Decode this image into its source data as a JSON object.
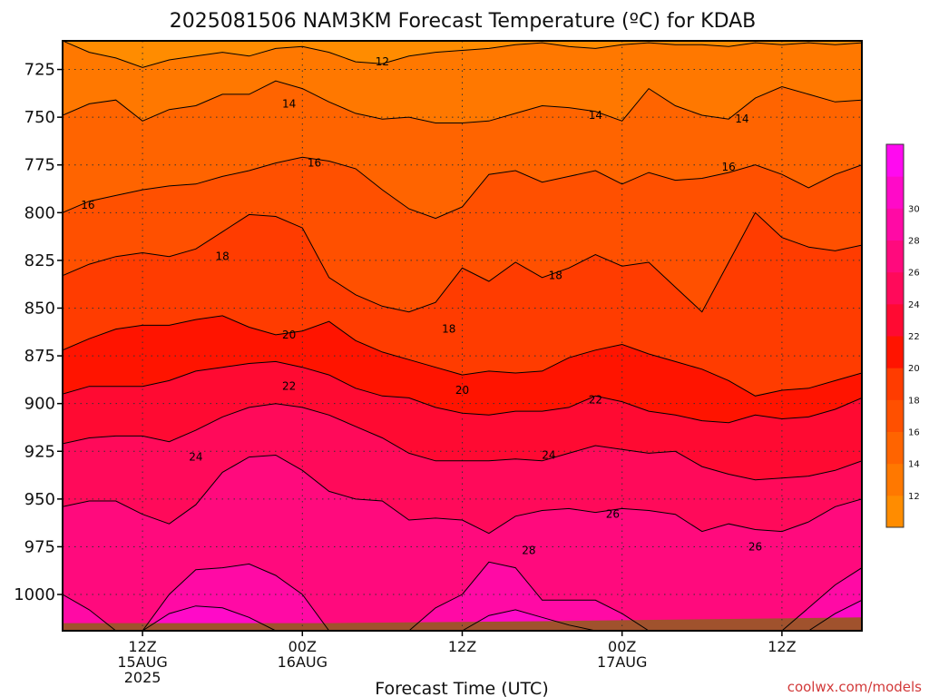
{
  "chart_data": {
    "type": "heatmap",
    "title": "2025081506 NAM3KM Forecast Temperature (ºC) for KDAB",
    "xlabel": "Forecast Time (UTC)",
    "ylabel": "",
    "y_axis": {
      "ticks": [
        "725",
        "750",
        "775",
        "800",
        "825",
        "850",
        "875",
        "900",
        "925",
        "950",
        "975",
        "1000"
      ],
      "values": [
        725,
        750,
        775,
        800,
        825,
        850,
        875,
        900,
        925,
        950,
        975,
        1000
      ],
      "range": [
        710,
        1019
      ],
      "direction": "pressure increasing downward"
    },
    "x_axis": {
      "range_hours": [
        0,
        60
      ],
      "ticks": [
        {
          "hour": 6,
          "line1": "12Z",
          "line2": "15AUG",
          "line3": "2025"
        },
        {
          "hour": 18,
          "line1": "00Z",
          "line2": "16AUG",
          "line3": ""
        },
        {
          "hour": 30,
          "line1": "12Z",
          "line2": "",
          "line3": ""
        },
        {
          "hour": 42,
          "line1": "00Z",
          "line2": "17AUG",
          "line3": ""
        },
        {
          "hour": 54,
          "line1": "12Z",
          "line2": "",
          "line3": ""
        }
      ]
    },
    "grid": true,
    "colorbar": {
      "placement": "right",
      "levels": [
        10,
        12,
        14,
        16,
        18,
        20,
        22,
        24,
        26,
        28,
        30,
        32
      ],
      "tick_labels": [
        "12",
        "14",
        "16",
        "18",
        "20",
        "22",
        "24",
        "26",
        "28",
        "30"
      ],
      "colors": [
        "#ff8c00",
        "#ff7800",
        "#ff6400",
        "#ff5000",
        "#ff3c00",
        "#ff1400",
        "#ff0a32",
        "#ff0a5a",
        "#ff0a7d",
        "#ff0aa5",
        "#ff0ac8",
        "#ff0af0"
      ]
    },
    "contour_labels": [
      {
        "text": "12",
        "hour": 24.0,
        "p": 721
      },
      {
        "text": "14",
        "hour": 17.0,
        "p": 743
      },
      {
        "text": "14",
        "hour": 40.0,
        "p": 749
      },
      {
        "text": "14",
        "hour": 51.0,
        "p": 751
      },
      {
        "text": "16",
        "hour": 1.9,
        "p": 796
      },
      {
        "text": "16",
        "hour": 18.9,
        "p": 774
      },
      {
        "text": "16",
        "hour": 50.0,
        "p": 776
      },
      {
        "text": "18",
        "hour": 12.0,
        "p": 823
      },
      {
        "text": "18",
        "hour": 37.0,
        "p": 833
      },
      {
        "text": "18",
        "hour": 29.0,
        "p": 861
      },
      {
        "text": "20",
        "hour": 17.0,
        "p": 864
      },
      {
        "text": "20",
        "hour": 30.0,
        "p": 893
      },
      {
        "text": "22",
        "hour": 17.0,
        "p": 891
      },
      {
        "text": "22",
        "hour": 40.0,
        "p": 898
      },
      {
        "text": "24",
        "hour": 10.0,
        "p": 928
      },
      {
        "text": "24",
        "hour": 36.5,
        "p": 927
      },
      {
        "text": "26",
        "hour": 41.3,
        "p": 958
      },
      {
        "text": "26",
        "hour": 52.0,
        "p": 975
      },
      {
        "text": "28",
        "hour": 35.0,
        "p": 977
      }
    ]
  },
  "credit": "coolwx.com/models"
}
